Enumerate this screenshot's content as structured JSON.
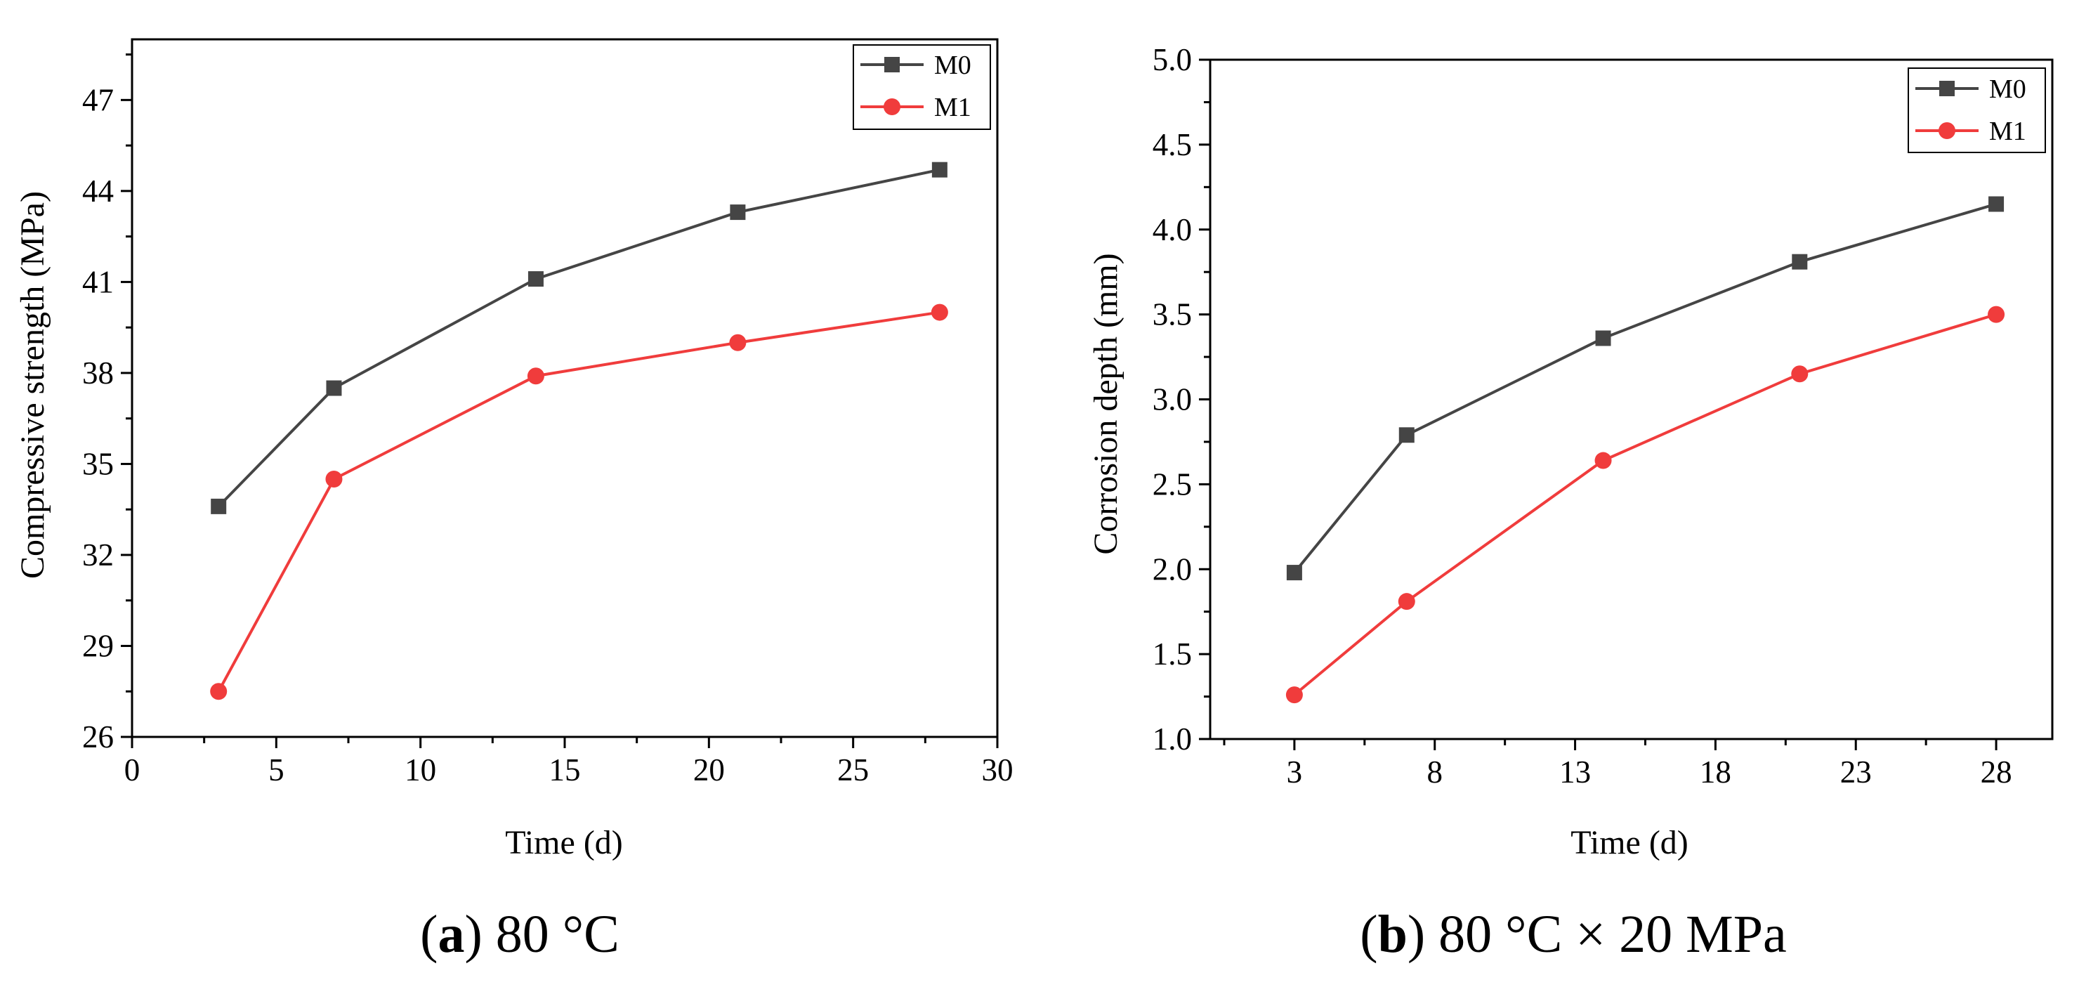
{
  "colors": {
    "M0": "#454545",
    "M1": "#f03c3c"
  },
  "chart_data": [
    {
      "id": "a",
      "type": "line",
      "caption_letter": "a",
      "caption_rest": ") 80 °C",
      "caption_open": "(",
      "xlabel": "Time (d)",
      "ylabel": "Compressive strength (MPa)",
      "xlim": [
        0,
        30
      ],
      "ylim": [
        26,
        49
      ],
      "xticks": [
        0,
        5,
        10,
        15,
        20,
        25,
        30
      ],
      "yticks": [
        26,
        29,
        32,
        35,
        38,
        41,
        44,
        47
      ],
      "legend_position": "top-right",
      "series": [
        {
          "name": "M0",
          "marker": "square",
          "x": [
            3,
            7,
            14,
            21,
            28
          ],
          "y": [
            33.6,
            37.5,
            41.1,
            43.3,
            44.7
          ]
        },
        {
          "name": "M1",
          "marker": "circle",
          "x": [
            3,
            7,
            14,
            21,
            28
          ],
          "y": [
            27.5,
            34.5,
            37.9,
            39.0,
            40.0
          ]
        }
      ]
    },
    {
      "id": "b",
      "type": "line",
      "caption_letter": "b",
      "caption_rest": ") 80 °C × 20 MPa",
      "caption_open": "(",
      "xlabel": "Time (d)",
      "ylabel": "Corrosion depth (mm)",
      "xlim": [
        0,
        30
      ],
      "ylim": [
        1.0,
        5.0
      ],
      "xticks": [
        3,
        8,
        13,
        18,
        23,
        28
      ],
      "yticks": [
        1.0,
        1.5,
        2.0,
        2.5,
        3.0,
        3.5,
        4.0,
        4.5,
        5.0
      ],
      "ytick_decimals": 1,
      "legend_position": "top-right",
      "series": [
        {
          "name": "M0",
          "marker": "square",
          "x": [
            3,
            7,
            14,
            21,
            28
          ],
          "y": [
            1.98,
            2.79,
            3.36,
            3.81,
            4.15
          ]
        },
        {
          "name": "M1",
          "marker": "circle",
          "x": [
            3,
            7,
            14,
            21,
            28
          ],
          "y": [
            1.26,
            1.81,
            2.64,
            3.15,
            3.5
          ]
        }
      ]
    }
  ]
}
